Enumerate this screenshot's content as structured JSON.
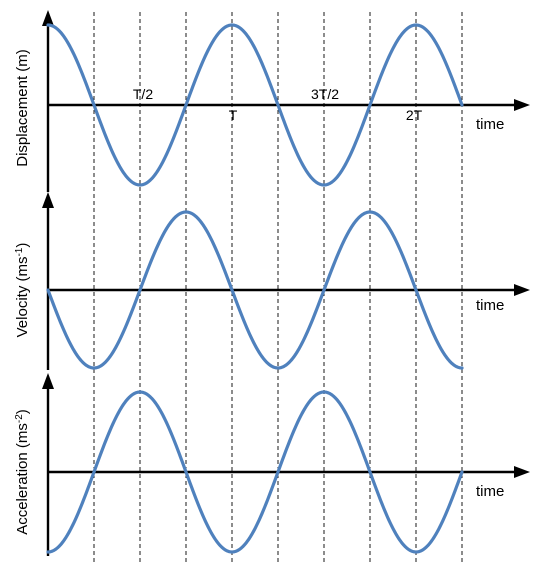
{
  "colors": {
    "curve": "#4f81bd",
    "axis": "#000000"
  },
  "chart_data": [
    {
      "type": "line",
      "ylabel_main": "Displacement (m)",
      "ylabel_sup": "",
      "ylabel_end": "",
      "xlabel": "time",
      "x_range": [
        0,
        2.25
      ],
      "y_range": [
        -1,
        1
      ],
      "grid_x": [
        0,
        0.25,
        0.5,
        0.75,
        1,
        1.25,
        1.5,
        1.75,
        2,
        2.25
      ],
      "x_ticks": [
        {
          "x": 0.5,
          "label": "T/2",
          "pos": "above"
        },
        {
          "x": 1,
          "label": "T",
          "pos": "below"
        },
        {
          "x": 1.5,
          "label": "3T/2",
          "pos": "above"
        },
        {
          "x": 2,
          "label": "2T",
          "pos": "below"
        }
      ],
      "series": [
        {
          "function": "cos",
          "amplitude": 1,
          "period": 1,
          "x": [
            0,
            2.25
          ]
        }
      ]
    },
    {
      "type": "line",
      "ylabel_main": "Velocity (ms",
      "ylabel_sup": "-1",
      "ylabel_end": ")",
      "xlabel": "time",
      "x_range": [
        0,
        2.25
      ],
      "y_range": [
        -1,
        1
      ],
      "grid_x": [
        0,
        0.25,
        0.5,
        0.75,
        1,
        1.25,
        1.5,
        1.75,
        2,
        2.25
      ],
      "x_ticks": [],
      "series": [
        {
          "function": "-sin",
          "amplitude": 1,
          "period": 1,
          "x": [
            0,
            2.25
          ]
        }
      ]
    },
    {
      "type": "line",
      "ylabel_main": "Acceleration (ms",
      "ylabel_sup": "-2",
      "ylabel_end": ")",
      "xlabel": "time",
      "x_range": [
        0,
        2.25
      ],
      "y_range": [
        -1,
        1
      ],
      "grid_x": [
        0,
        0.25,
        0.5,
        0.75,
        1,
        1.25,
        1.5,
        1.75,
        2,
        2.25
      ],
      "x_ticks": [],
      "series": [
        {
          "function": "-cos",
          "amplitude": 1,
          "period": 1,
          "x": [
            0,
            2.25
          ]
        }
      ]
    }
  ]
}
